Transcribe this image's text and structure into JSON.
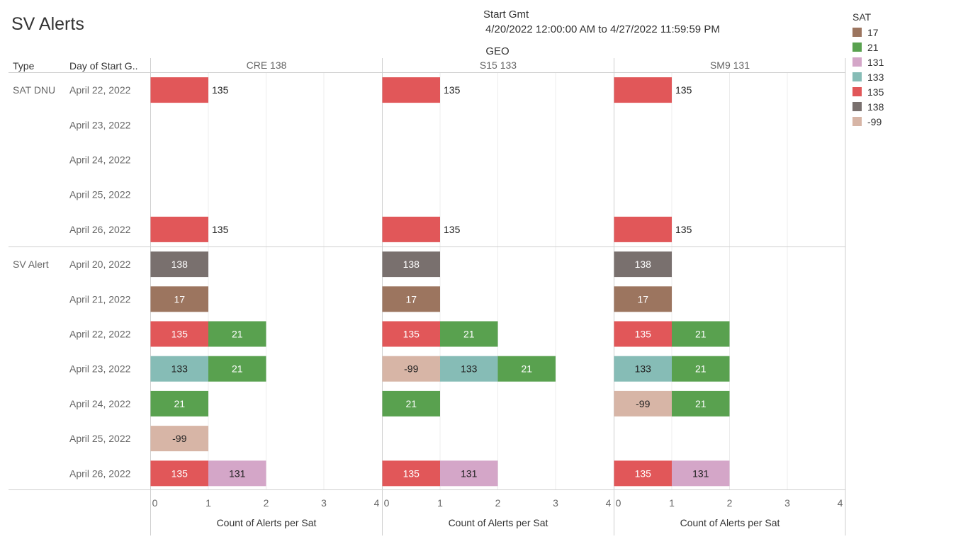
{
  "title": "SV Alerts",
  "filter": {
    "label": "Start Gmt",
    "range": "4/20/2022 12:00:00 AM to 4/27/2022 11:59:59 PM"
  },
  "legend": {
    "title": "SAT",
    "items": [
      {
        "label": "17",
        "color": "#9c755f"
      },
      {
        "label": "21",
        "color": "#59a14f"
      },
      {
        "label": "131",
        "color": "#d4a6c8"
      },
      {
        "label": "133",
        "color": "#86bcb6"
      },
      {
        "label": "135",
        "color": "#e15759"
      },
      {
        "label": "138",
        "color": "#79706e"
      },
      {
        "label": "-99",
        "color": "#d7b5a6"
      }
    ]
  },
  "chart_data": {
    "type": "bar",
    "orientation": "horizontal-stacked",
    "column_group_title": "GEO",
    "row_headers": [
      "Type",
      "Day of Start G.."
    ],
    "panels": [
      "CRE 138",
      "S15 133",
      "SM9 131"
    ],
    "xlabel": "Count of Alerts per Sat",
    "xlim": [
      0,
      4
    ],
    "xticks": [
      "0",
      "1",
      "2",
      "3",
      "4"
    ],
    "groups": [
      {
        "type": "SAT DNU",
        "days": [
          "April 22, 2022",
          "April 23, 2022",
          "April 24, 2022",
          "April 25, 2022",
          "April 26, 2022"
        ]
      },
      {
        "type": "SV Alert",
        "days": [
          "April 20, 2022",
          "April 21, 2022",
          "April 22, 2022",
          "April 23, 2022",
          "April 24, 2022",
          "April 25, 2022",
          "April 26, 2022"
        ]
      }
    ],
    "values": [
      [
        [
          [
            "135"
          ]
        ],
        [
          []
        ],
        [
          []
        ],
        [
          []
        ],
        [
          [
            "135"
          ]
        ]
      ],
      [
        [
          [
            "138"
          ],
          [
            "17"
          ],
          [
            "135",
            "21"
          ],
          [
            "133",
            "21"
          ],
          [
            "21"
          ],
          [
            "-99"
          ],
          [
            "135",
            "131"
          ]
        ]
      ]
    ],
    "cells": {
      "CRE 138": {
        "SAT DNU": [
          [
            "135"
          ],
          [],
          [],
          [],
          [
            "135"
          ]
        ],
        "SV Alert": [
          [
            "138"
          ],
          [
            "17"
          ],
          [
            "135",
            "21"
          ],
          [
            "133",
            "21"
          ],
          [
            "21"
          ],
          [
            "-99"
          ],
          [
            "135",
            "131"
          ]
        ]
      },
      "S15 133": {
        "SAT DNU": [
          [
            "135"
          ],
          [],
          [],
          [],
          [
            "135"
          ]
        ],
        "SV Alert": [
          [
            "138"
          ],
          [
            "17"
          ],
          [
            "135",
            "21"
          ],
          [
            "-99",
            "133",
            "21"
          ],
          [
            "21"
          ],
          [],
          [
            "135",
            "131"
          ]
        ]
      },
      "SM9 131": {
        "SAT DNU": [
          [
            "135"
          ],
          [],
          [],
          [],
          [
            "135"
          ]
        ],
        "SV Alert": [
          [
            "138"
          ],
          [
            "17"
          ],
          [
            "135",
            "21"
          ],
          [
            "133",
            "21"
          ],
          [
            "-99",
            "21"
          ],
          [],
          [
            "135",
            "131"
          ]
        ]
      }
    },
    "segment_value": 1,
    "label_style": {
      "SAT DNU": "outside",
      "SV Alert": "inside"
    },
    "grid": true,
    "legend_position": "right"
  }
}
